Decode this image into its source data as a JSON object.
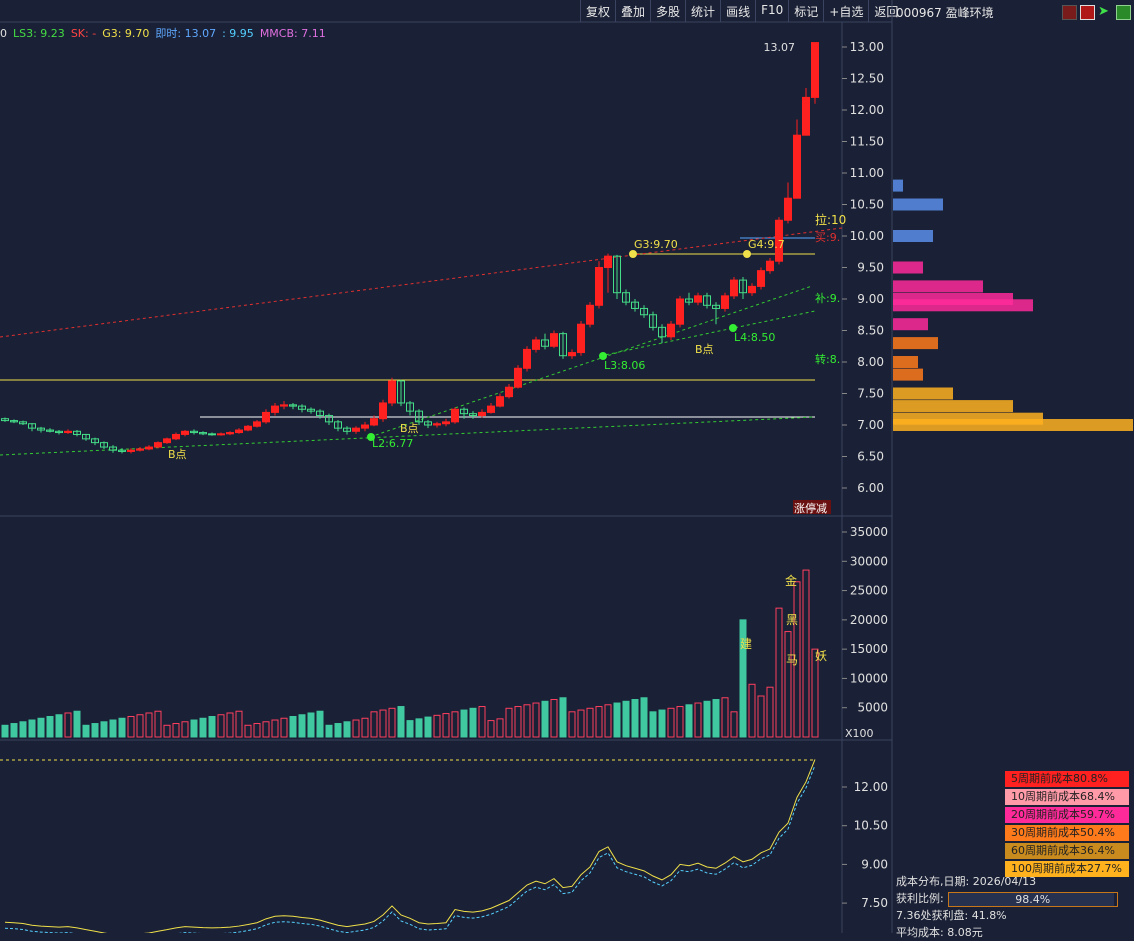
{
  "toolbar": {
    "items": [
      "复权",
      "叠加",
      "多股",
      "统计",
      "画线",
      "F10",
      "标记",
      "+自选",
      "返回"
    ]
  },
  "header": {
    "stock": "000967 盈峰环境"
  },
  "legend": [
    {
      "text": "0",
      "color": "#e0e0e0"
    },
    {
      "text": "LS3: 9.23",
      "color": "#44dd44"
    },
    {
      "text": "SK: -",
      "color": "#ff4444"
    },
    {
      "text": "G3: 9.70",
      "color": "#f0e04a"
    },
    {
      "text": "即时: 13.07",
      "color": "#5fa8ff"
    },
    {
      "text": ": 9.95",
      "color": "#55d0ff"
    },
    {
      "text": "MMCB: 7.11",
      "color": "#e070e0"
    }
  ],
  "price_axis": [
    "13.00",
    "12.50",
    "12.00",
    "11.50",
    "11.00",
    "10.50",
    "10.00",
    "9.50",
    "9.00",
    "8.50",
    "8.00",
    "7.50",
    "7.00",
    "6.50",
    "6.00"
  ],
  "vol_axis": [
    "35000",
    "30000",
    "25000",
    "20000",
    "15000",
    "10000",
    "5000"
  ],
  "vol_unit": "X100",
  "ind_axis": [
    "12.00",
    "10.50",
    "9.00",
    "7.50"
  ],
  "annotations": {
    "top_price": "13.07",
    "g3": "G3:9.70",
    "g4": "G4:9.7",
    "l3": "L3:8.06",
    "l2": "L2:6.77",
    "l4": "L4:8.50",
    "b1": "B点",
    "b2": "B点",
    "b3": "B点",
    "la": "拉:10",
    "mai": "买:9.",
    "bu": "补:9.",
    "zhuan": "转:8.",
    "zhangting": "涨停减"
  },
  "vol_labels": [
    "建",
    "金",
    "黑",
    "马",
    "妖"
  ],
  "cost_rows": [
    {
      "text": "5周期前成本80.8%",
      "color": "#ff2020"
    },
    {
      "text": "10周期前成本68.4%",
      "color": "#ff9aa8"
    },
    {
      "text": "20周期前成本59.7%",
      "color": "#ff2a9a"
    },
    {
      "text": "30周期前成本50.4%",
      "color": "#ff7a1a"
    },
    {
      "text": "60周期前成本36.4%",
      "color": "#c98a1e"
    },
    {
      "text": "100周期前成本27.7%",
      "color": "#ffb21e"
    }
  ],
  "info": {
    "date_label": "成本分布,日期: 2026/04/13",
    "ratio_label": "获利比例:",
    "ratio_value": "98.4%",
    "ratio_fraction": 0.984,
    "profit_line": "7.36处获利盘: 41.8%",
    "avg_cost": "平均成本: 8.08元"
  },
  "chart_data": {
    "type": "candlestick",
    "price_ylim": [
      5.7,
      13.3
    ],
    "candles": [
      [
        7.1,
        7.07,
        7.12,
        7.05
      ],
      [
        7.07,
        7.05,
        7.09,
        7.03
      ],
      [
        7.05,
        7.02,
        7.07,
        7.0
      ],
      [
        7.02,
        6.95,
        7.03,
        6.9
      ],
      [
        6.95,
        6.92,
        6.97,
        6.88
      ],
      [
        6.92,
        6.9,
        6.95,
        6.88
      ],
      [
        6.9,
        6.88,
        6.92,
        6.85
      ],
      [
        6.88,
        6.9,
        6.93,
        6.86
      ],
      [
        6.9,
        6.85,
        6.92,
        6.82
      ],
      [
        6.85,
        6.78,
        6.86,
        6.75
      ],
      [
        6.78,
        6.72,
        6.8,
        6.68
      ],
      [
        6.72,
        6.65,
        6.74,
        6.62
      ],
      [
        6.65,
        6.6,
        6.68,
        6.56
      ],
      [
        6.6,
        6.58,
        6.63,
        6.55
      ],
      [
        6.58,
        6.6,
        6.63,
        6.55
      ],
      [
        6.6,
        6.62,
        6.65,
        6.58
      ],
      [
        6.62,
        6.65,
        6.68,
        6.6
      ],
      [
        6.65,
        6.72,
        6.74,
        6.63
      ],
      [
        6.72,
        6.78,
        6.8,
        6.7
      ],
      [
        6.78,
        6.85,
        6.88,
        6.76
      ],
      [
        6.85,
        6.9,
        6.92,
        6.82
      ],
      [
        6.9,
        6.88,
        6.93,
        6.85
      ],
      [
        6.88,
        6.86,
        6.9,
        6.84
      ],
      [
        6.86,
        6.85,
        6.88,
        6.83
      ],
      [
        6.85,
        6.86,
        6.88,
        6.83
      ],
      [
        6.86,
        6.88,
        6.9,
        6.84
      ],
      [
        6.88,
        6.92,
        6.95,
        6.86
      ],
      [
        6.92,
        6.98,
        7.0,
        6.9
      ],
      [
        6.98,
        7.05,
        7.08,
        6.96
      ],
      [
        7.05,
        7.2,
        7.25,
        7.02
      ],
      [
        7.2,
        7.3,
        7.35,
        7.15
      ],
      [
        7.3,
        7.32,
        7.38,
        7.25
      ],
      [
        7.32,
        7.3,
        7.35,
        7.25
      ],
      [
        7.3,
        7.25,
        7.33,
        7.2
      ],
      [
        7.25,
        7.22,
        7.28,
        7.18
      ],
      [
        7.22,
        7.15,
        7.25,
        7.1
      ],
      [
        7.15,
        7.05,
        7.18,
        7.0
      ],
      [
        7.05,
        6.95,
        7.08,
        6.9
      ],
      [
        6.95,
        6.9,
        6.98,
        6.85
      ],
      [
        6.9,
        6.95,
        6.98,
        6.86
      ],
      [
        6.95,
        7.0,
        7.05,
        6.9
      ],
      [
        7.0,
        7.1,
        7.15,
        6.98
      ],
      [
        7.1,
        7.35,
        7.4,
        7.05
      ],
      [
        7.35,
        7.7,
        7.75,
        7.3
      ],
      [
        7.7,
        7.35,
        7.72,
        7.3
      ],
      [
        7.35,
        7.22,
        7.38,
        7.15
      ],
      [
        7.22,
        7.05,
        7.25,
        7.0
      ],
      [
        7.05,
        7.0,
        7.08,
        6.95
      ],
      [
        7.0,
        7.02,
        7.05,
        6.96
      ],
      [
        7.02,
        7.05,
        7.1,
        6.98
      ],
      [
        7.05,
        7.25,
        7.28,
        7.02
      ],
      [
        7.25,
        7.18,
        7.28,
        7.1
      ],
      [
        7.18,
        7.15,
        7.22,
        7.1
      ],
      [
        7.15,
        7.2,
        7.25,
        7.12
      ],
      [
        7.2,
        7.3,
        7.35,
        7.18
      ],
      [
        7.3,
        7.45,
        7.5,
        7.28
      ],
      [
        7.45,
        7.6,
        7.65,
        7.42
      ],
      [
        7.6,
        7.9,
        7.95,
        7.58
      ],
      [
        7.9,
        8.2,
        8.25,
        7.85
      ],
      [
        8.2,
        8.35,
        8.4,
        8.15
      ],
      [
        8.35,
        8.25,
        8.45,
        8.2
      ],
      [
        8.25,
        8.45,
        8.5,
        8.22
      ],
      [
        8.45,
        8.1,
        8.48,
        8.05
      ],
      [
        8.1,
        8.15,
        8.2,
        8.05
      ],
      [
        8.15,
        8.6,
        8.65,
        8.1
      ],
      [
        8.6,
        8.9,
        8.95,
        8.55
      ],
      [
        8.9,
        9.5,
        9.6,
        8.85
      ],
      [
        9.5,
        9.68,
        9.72,
        9.1
      ],
      [
        9.68,
        9.1,
        9.7,
        9.0
      ],
      [
        9.1,
        8.95,
        9.15,
        8.9
      ],
      [
        8.95,
        8.85,
        9.0,
        8.8
      ],
      [
        8.85,
        8.75,
        8.9,
        8.7
      ],
      [
        8.75,
        8.55,
        8.8,
        8.5
      ],
      [
        8.55,
        8.4,
        8.6,
        8.3
      ],
      [
        8.4,
        8.6,
        8.65,
        8.35
      ],
      [
        8.6,
        9.0,
        9.05,
        8.55
      ],
      [
        9.0,
        8.95,
        9.1,
        8.9
      ],
      [
        8.95,
        9.05,
        9.1,
        8.9
      ],
      [
        9.05,
        8.9,
        9.1,
        8.85
      ],
      [
        8.9,
        8.85,
        8.95,
        8.6
      ],
      [
        8.85,
        9.05,
        9.1,
        8.8
      ],
      [
        9.05,
        9.3,
        9.35,
        9.0
      ],
      [
        9.3,
        9.1,
        9.35,
        9.0
      ],
      [
        9.1,
        9.2,
        9.25,
        9.05
      ],
      [
        9.2,
        9.45,
        9.5,
        9.15
      ],
      [
        9.45,
        9.6,
        9.65,
        9.4
      ],
      [
        9.6,
        10.25,
        10.3,
        9.55
      ],
      [
        10.25,
        10.6,
        10.85,
        10.2
      ],
      [
        10.6,
        11.6,
        11.85,
        11.2
      ],
      [
        11.6,
        12.2,
        12.35,
        11.9
      ],
      [
        12.2,
        13.07,
        13.07,
        12.1
      ]
    ]
  }
}
